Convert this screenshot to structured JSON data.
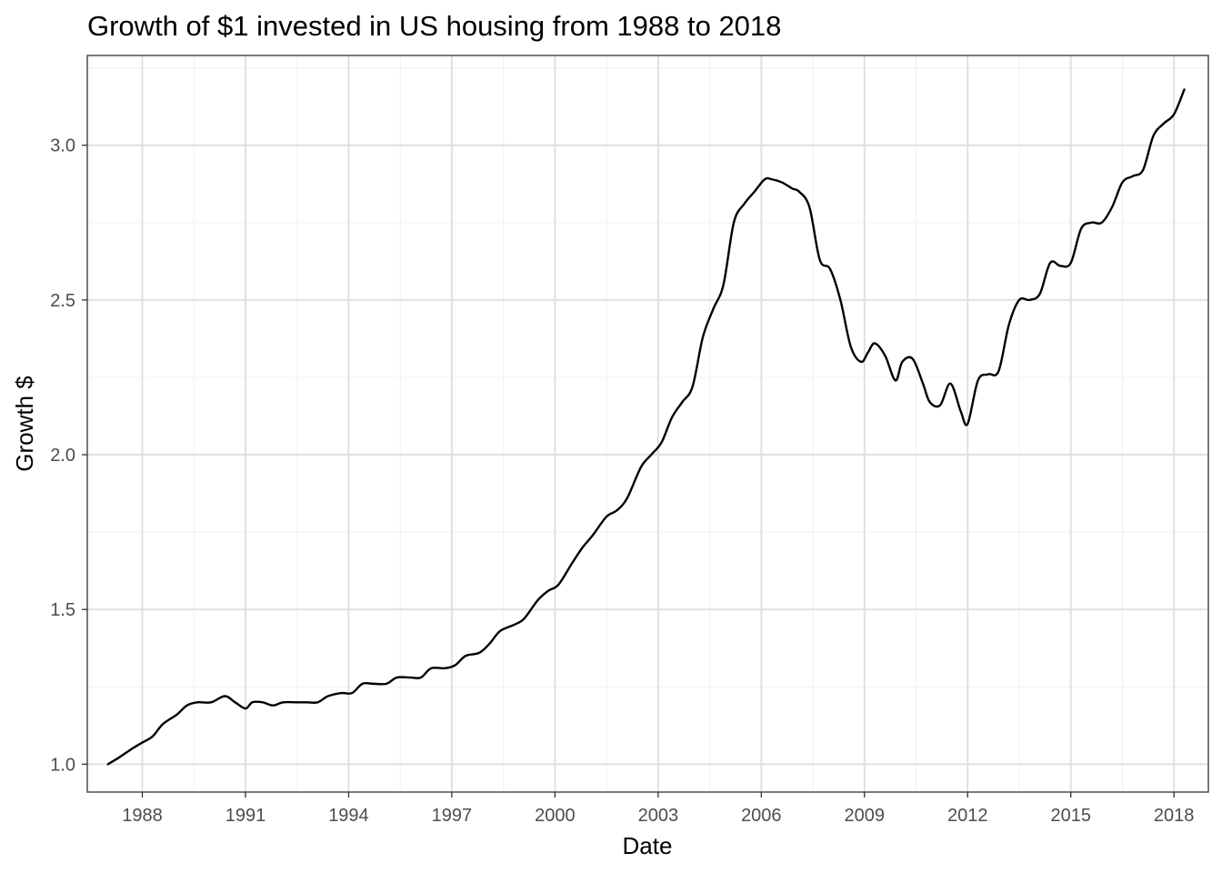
{
  "chart_data": {
    "type": "line",
    "title": "Growth of $1 invested in US housing from 1988 to 2018",
    "xlabel": "Date",
    "ylabel": "Growth $",
    "x_tick_labels": [
      "1988",
      "1991",
      "1994",
      "1997",
      "2000",
      "2003",
      "2006",
      "2009",
      "2012",
      "2015",
      "2018"
    ],
    "x_ticks": [
      1988,
      1991,
      1994,
      1997,
      2000,
      2003,
      2006,
      2009,
      2012,
      2015,
      2018
    ],
    "y_tick_labels": [
      "1.0",
      "1.5",
      "2.0",
      "2.5",
      "3.0"
    ],
    "y_ticks": [
      1.0,
      1.5,
      2.0,
      2.5,
      3.0
    ],
    "xlim": [
      1986.4,
      2019.0
    ],
    "ylim": [
      0.91,
      3.29
    ],
    "grid": true,
    "colors": {
      "line": "#000000",
      "grid_major": "#e0e0e0",
      "grid_minor": "#f0f0f0",
      "panel_border": "#333333",
      "tick_text": "#4d4d4d"
    },
    "series": [
      {
        "x": [
          1987.0,
          1987.3,
          1987.7,
          1988.0,
          1988.3,
          1988.6,
          1989.0,
          1989.3,
          1989.6,
          1990.0,
          1990.4,
          1990.7,
          1991.0,
          1991.2,
          1991.5,
          1991.8,
          1992.1,
          1992.5,
          1992.8,
          1993.1,
          1993.4,
          1993.8,
          1994.1,
          1994.4,
          1994.7,
          1995.1,
          1995.4,
          1995.8,
          1996.1,
          1996.4,
          1996.8,
          1997.1,
          1997.4,
          1997.8,
          1998.1,
          1998.4,
          1998.8,
          1999.1,
          1999.5,
          1999.8,
          2000.1,
          2000.5,
          2000.8,
          2001.1,
          2001.5,
          2001.8,
          2002.1,
          2002.5,
          2002.8,
          2003.1,
          2003.4,
          2003.7,
          2004.0,
          2004.3,
          2004.6,
          2004.9,
          2005.2,
          2005.5,
          2005.8,
          2006.1,
          2006.3,
          2006.6,
          2006.9,
          2007.1,
          2007.4,
          2007.7,
          2008.0,
          2008.3,
          2008.6,
          2008.9,
          2009.1,
          2009.3,
          2009.6,
          2009.9,
          2010.1,
          2010.4,
          2010.7,
          2010.9,
          2011.2,
          2011.5,
          2011.8,
          2012.0,
          2012.3,
          2012.6,
          2012.9,
          2013.2,
          2013.5,
          2013.8,
          2014.1,
          2014.4,
          2014.7,
          2015.0,
          2015.3,
          2015.6,
          2015.9,
          2016.2,
          2016.5,
          2016.8,
          2017.1,
          2017.4,
          2017.7,
          2018.0,
          2018.3
        ],
        "y": [
          1.0,
          1.02,
          1.05,
          1.07,
          1.09,
          1.13,
          1.16,
          1.19,
          1.2,
          1.2,
          1.22,
          1.2,
          1.18,
          1.2,
          1.2,
          1.19,
          1.2,
          1.2,
          1.2,
          1.2,
          1.22,
          1.23,
          1.23,
          1.26,
          1.26,
          1.26,
          1.28,
          1.28,
          1.28,
          1.31,
          1.31,
          1.32,
          1.35,
          1.36,
          1.39,
          1.43,
          1.45,
          1.47,
          1.53,
          1.56,
          1.58,
          1.65,
          1.7,
          1.74,
          1.8,
          1.82,
          1.86,
          1.96,
          2.0,
          2.04,
          2.12,
          2.17,
          2.22,
          2.38,
          2.47,
          2.55,
          2.75,
          2.81,
          2.85,
          2.89,
          2.89,
          2.88,
          2.86,
          2.85,
          2.8,
          2.63,
          2.6,
          2.5,
          2.35,
          2.3,
          2.33,
          2.36,
          2.32,
          2.24,
          2.3,
          2.31,
          2.23,
          2.17,
          2.16,
          2.23,
          2.14,
          2.1,
          2.24,
          2.26,
          2.27,
          2.42,
          2.5,
          2.5,
          2.52,
          2.62,
          2.61,
          2.62,
          2.73,
          2.75,
          2.75,
          2.8,
          2.88,
          2.9,
          2.92,
          3.03,
          3.07,
          3.1,
          3.18
        ]
      }
    ]
  }
}
